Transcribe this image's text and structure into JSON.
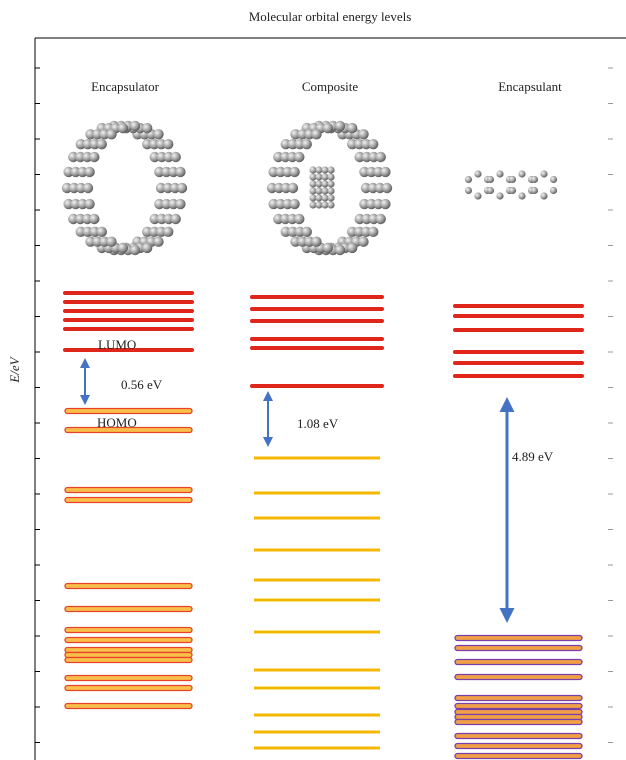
{
  "title": "Molecular orbital energy levels",
  "y_axis_label": "E/eV",
  "columns": [
    "Encapsulator",
    "Composite",
    "Encapsulant"
  ],
  "annotations": {
    "lumo": "LUMO",
    "homo": "HOMO",
    "gap_encapsulator": "0.56 eV",
    "gap_composite": "1.08 eV",
    "gap_encapsulant": "4.89 eV"
  }
}
